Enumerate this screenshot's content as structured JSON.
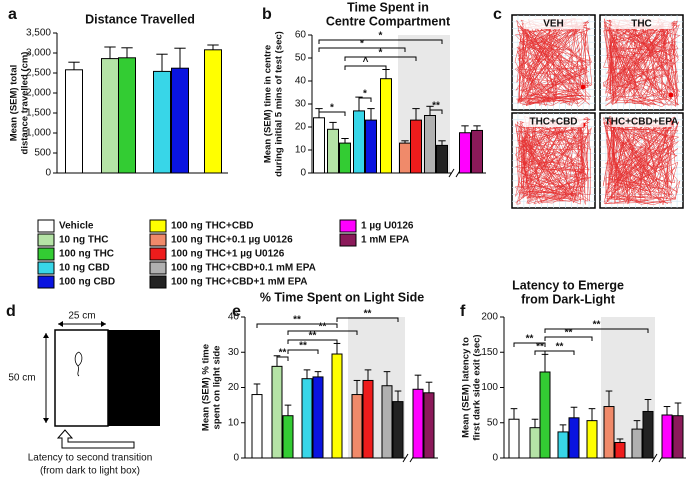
{
  "chart_data": [
    {
      "type": "bar",
      "panel": "a",
      "title": [
        "Distance Travelled"
      ],
      "ylabel": [
        "Mean (SEM) total",
        "distance travelled (cm)"
      ],
      "values": [
        2580,
        2860,
        2880,
        2540,
        2620,
        3080
      ],
      "errors": [
        190,
        290,
        250,
        430,
        500,
        120
      ],
      "ylim": [
        0,
        3500
      ],
      "yticks": [
        0,
        500,
        {
          "value": 1000,
          "label": "1,000"
        },
        {
          "value": 1500,
          "label": "1,500"
        },
        {
          "value": 2000,
          "label": "2,000"
        },
        {
          "value": 2500,
          "label": "2,500"
        },
        {
          "value": 3000,
          "label": "3,000"
        },
        {
          "value": 3500,
          "label": "3,500"
        }
      ],
      "annotations": []
    },
    {
      "type": "bar",
      "panel": "b",
      "title": [
        "Time Spent in",
        "Centre Compartment"
      ],
      "ylabel": [
        "Mean (SEM) time in centre",
        "during initial 5 mins of test (sec)"
      ],
      "values": [
        24,
        19,
        13,
        27,
        23,
        41,
        13,
        23,
        25,
        12,
        17.5,
        18.5
      ],
      "errors": [
        4,
        3,
        2,
        6,
        5,
        4,
        1,
        5,
        4,
        2,
        3,
        2
      ],
      "ylim": [
        0,
        60
      ],
      "yticks": [
        0,
        10,
        20,
        30,
        40,
        50,
        60
      ],
      "annotations": [
        "*",
        "*",
        "*",
        "^",
        "*",
        "*",
        "**"
      ]
    },
    {
      "type": "bar",
      "panel": "e",
      "title": [
        "% Time Spent on Light Side"
      ],
      "ylabel": [
        "Mean (SEM) % time",
        "spent on light side"
      ],
      "values": [
        18,
        26,
        12,
        22.5,
        23,
        29.5,
        18,
        22,
        20.5,
        16,
        19.5,
        18.5
      ],
      "errors": [
        3,
        3,
        3,
        2.5,
        1.5,
        3,
        4,
        3,
        4,
        3,
        4,
        3
      ],
      "ylim": [
        0,
        40
      ],
      "yticks": [
        0,
        10,
        20,
        30,
        40
      ],
      "annotations": [
        "**",
        "**",
        "**",
        "**",
        "**",
        "**"
      ]
    },
    {
      "type": "bar",
      "panel": "f",
      "title": [
        "Latency to Emerge",
        "from Dark-Light"
      ],
      "ylabel": [
        "Mean (SEM) latency to",
        "first dark side exit (sec)"
      ],
      "values": [
        55,
        43,
        122,
        37,
        57,
        53,
        73,
        22,
        41,
        66,
        61,
        60
      ],
      "errors": [
        15,
        12,
        25,
        10,
        15,
        17,
        22,
        5,
        12,
        17,
        12,
        18
      ],
      "ylim": [
        0,
        200
      ],
      "yticks": [
        0,
        50,
        100,
        150,
        200
      ],
      "annotations": [
        "**",
        "**",
        "**",
        "**",
        "**"
      ]
    }
  ],
  "legend": {
    "labels": [
      "Vehicle",
      "10 ng THC",
      "100 ng THC",
      "10 ng CBD",
      "100 ng CBD",
      "100 ng THC+CBD",
      "100 ng THC+0.1 µg U0126",
      "100 ng THC+1 µg U0126",
      "100 ng THC+CBD+0.1 mM EPA",
      "100 ng THC+CBD+1 mM EPA",
      "1 µg U0126",
      "1 mM EPA"
    ],
    "colors": [
      "#ffffff",
      "#b5e3a6",
      "#33cc33",
      "#38d6e8",
      "#0a14e0",
      "#ffff00",
      "#f08a6a",
      "#ee1c1c",
      "#b0b0b0",
      "#222222",
      "#ff00ff",
      "#8b1a5a"
    ]
  },
  "panel_c": {
    "panel": "c",
    "labels": [
      "VEH",
      "THC",
      "THC+CBD",
      "THC+CBD+EPA"
    ]
  },
  "panel_d": {
    "panel": "d",
    "width_label": "25 cm",
    "height_label": "50 cm",
    "caption": [
      "Latency to second transition",
      "(from dark to light box)"
    ]
  }
}
